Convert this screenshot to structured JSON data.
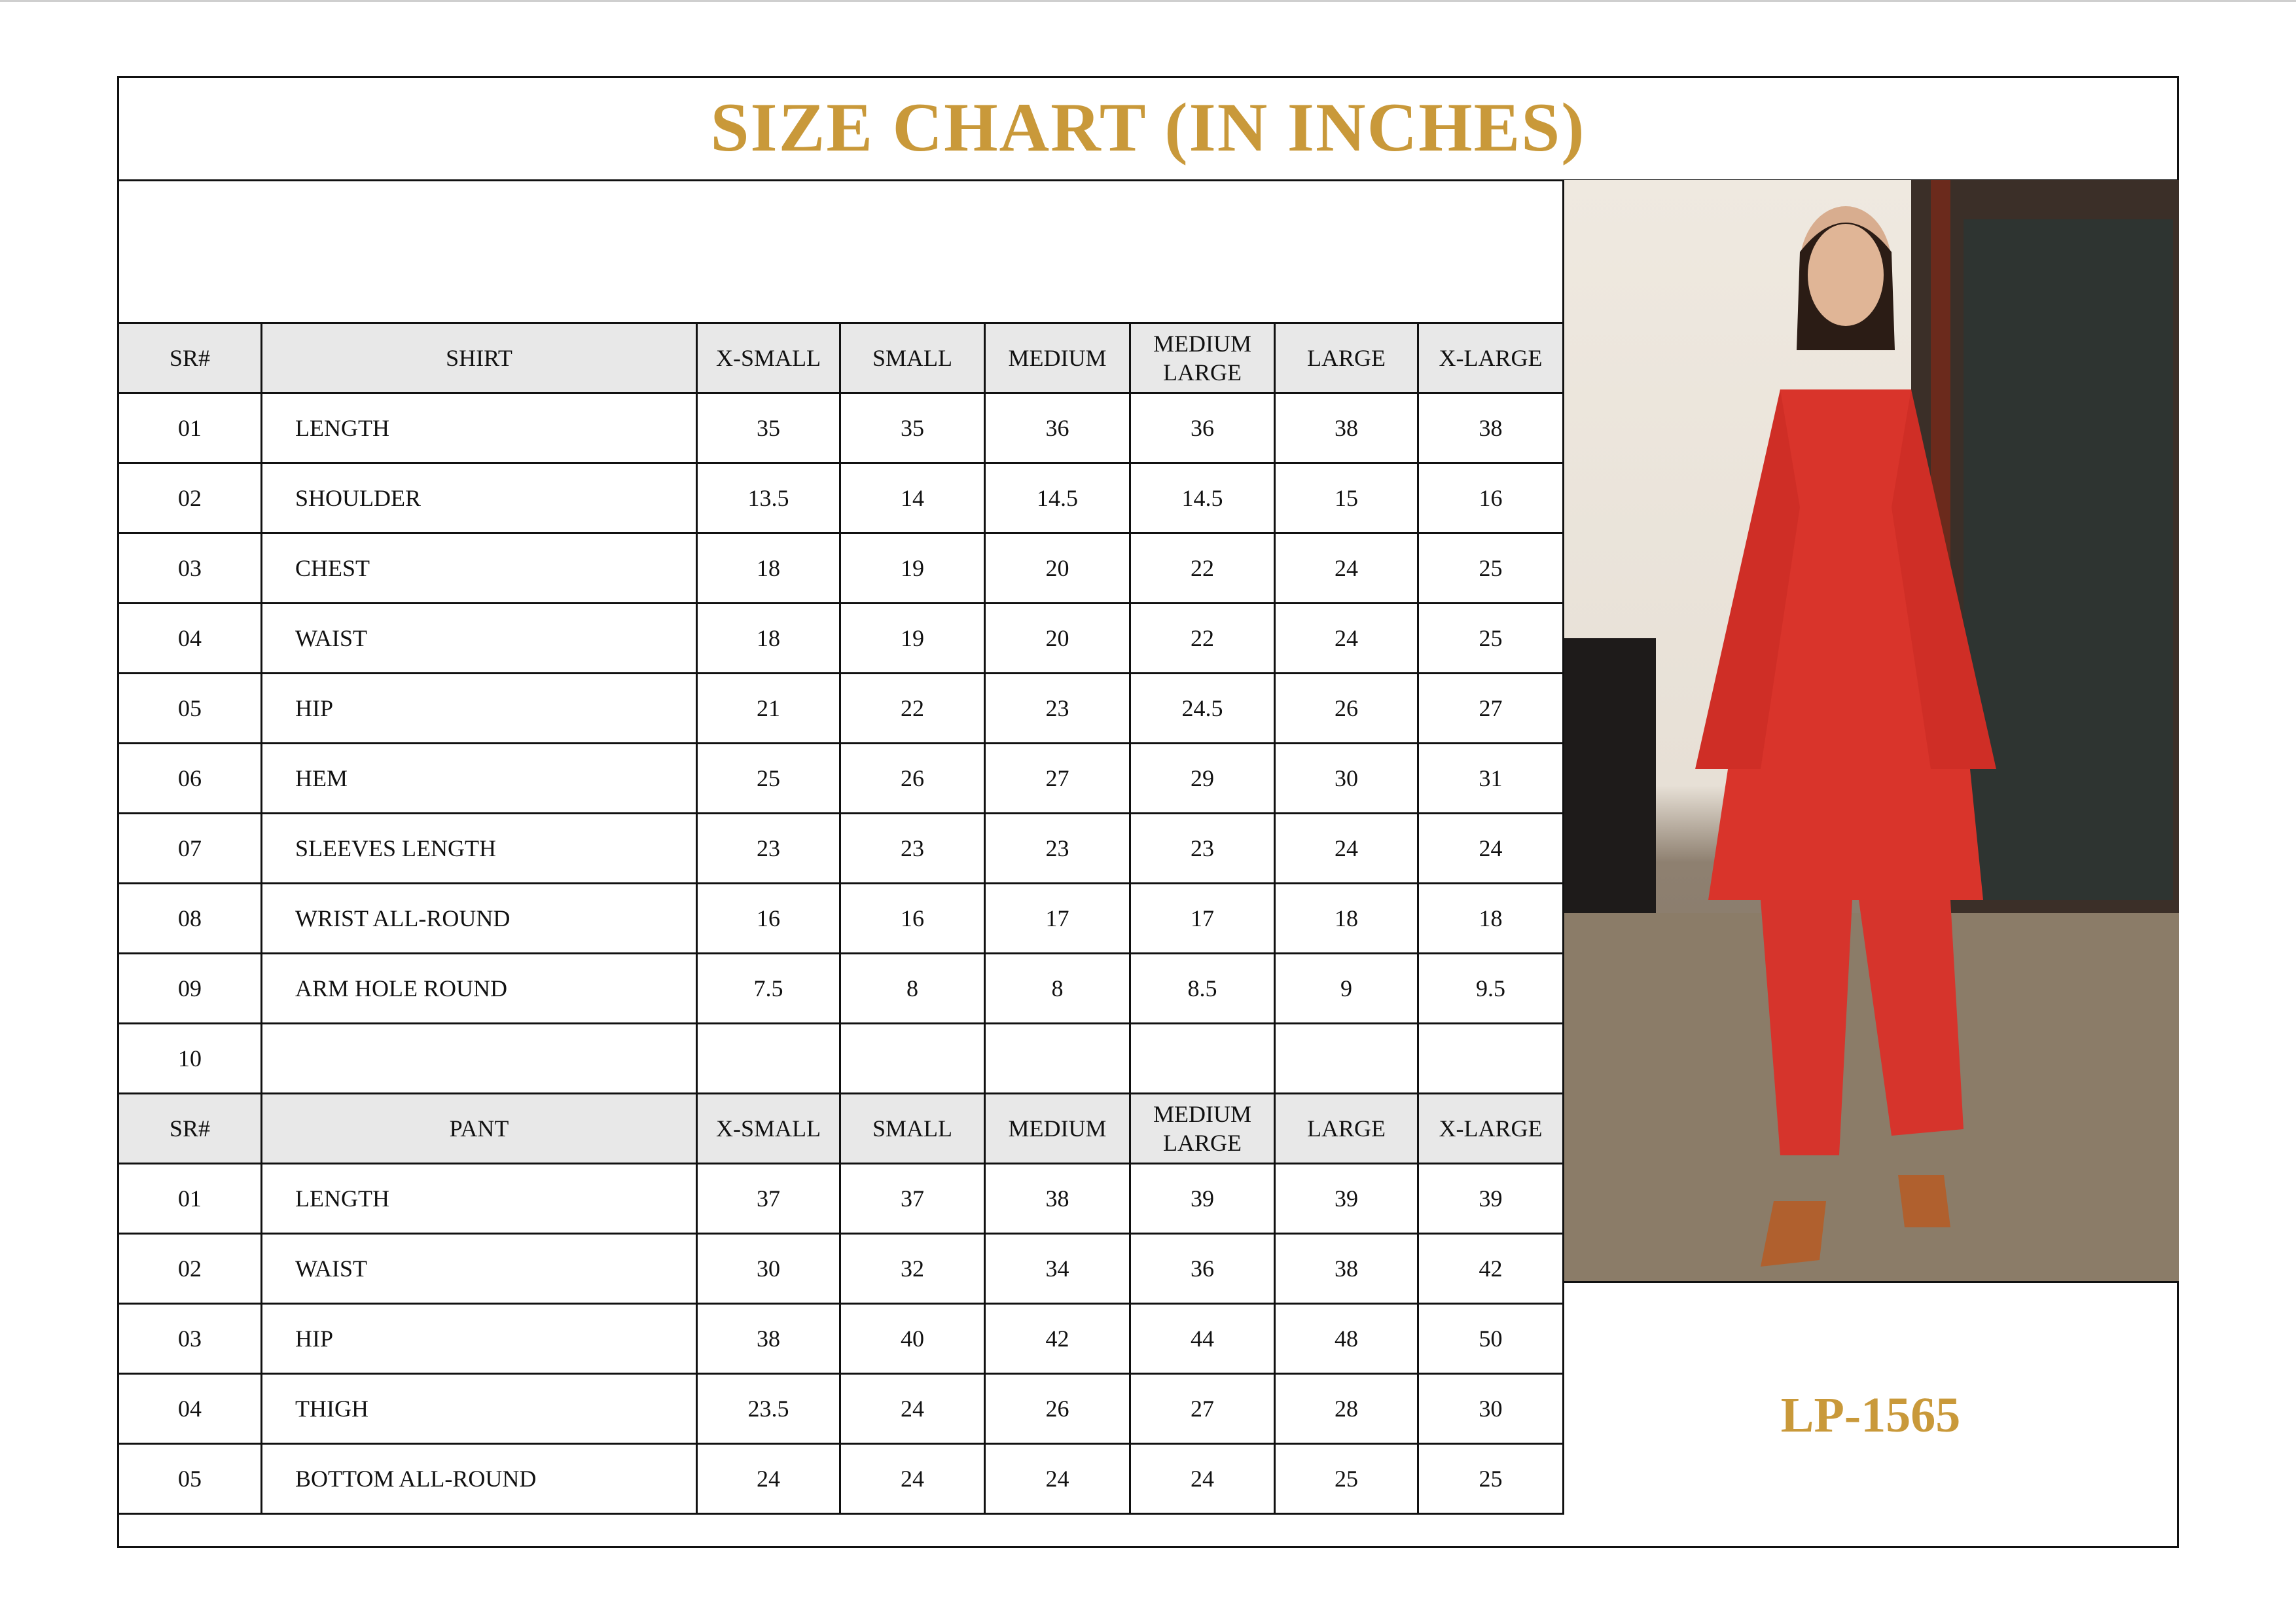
{
  "title": "SIZE CHART (IN INCHES)",
  "product_code": "LP-1565",
  "colors": {
    "accent": "#C9993A",
    "header_bg": "#e8e8e8",
    "garment": "#d9342b"
  },
  "shirt": {
    "header": [
      "SR#",
      "SHIRT",
      "X-SMALL",
      "SMALL",
      "MEDIUM",
      "MEDIUM\nLARGE",
      "LARGE",
      "X-LARGE"
    ],
    "rows": [
      [
        "01",
        "LENGTH",
        "35",
        "35",
        "36",
        "36",
        "38",
        "38"
      ],
      [
        "02",
        "SHOULDER",
        "13.5",
        "14",
        "14.5",
        "14.5",
        "15",
        "16"
      ],
      [
        "03",
        "CHEST",
        "18",
        "19",
        "20",
        "22",
        "24",
        "25"
      ],
      [
        "04",
        "WAIST",
        "18",
        "19",
        "20",
        "22",
        "24",
        "25"
      ],
      [
        "05",
        "HIP",
        "21",
        "22",
        "23",
        "24.5",
        "26",
        "27"
      ],
      [
        "06",
        "HEM",
        "25",
        "26",
        "27",
        "29",
        "30",
        "31"
      ],
      [
        "07",
        "SLEEVES LENGTH",
        "23",
        "23",
        "23",
        "23",
        "24",
        "24"
      ],
      [
        "08",
        "WRIST ALL-ROUND",
        "16",
        "16",
        "17",
        "17",
        "18",
        "18"
      ],
      [
        "09",
        "ARM HOLE ROUND",
        "7.5",
        "8",
        "8",
        "8.5",
        "9",
        "9.5"
      ],
      [
        "10",
        "",
        "",
        "",
        "",
        "",
        "",
        ""
      ]
    ]
  },
  "pant": {
    "header": [
      "SR#",
      "PANT",
      "X-SMALL",
      "SMALL",
      "MEDIUM",
      "MEDIUM\nLARGE",
      "LARGE",
      "X-LARGE"
    ],
    "rows": [
      [
        "01",
        "LENGTH",
        "37",
        "37",
        "38",
        "39",
        "39",
        "39"
      ],
      [
        "02",
        "WAIST",
        "30",
        "32",
        "34",
        "36",
        "38",
        "42"
      ],
      [
        "03",
        "HIP",
        "38",
        "40",
        "42",
        "44",
        "48",
        "50"
      ],
      [
        "04",
        "THIGH",
        "23.5",
        "24",
        "26",
        "27",
        "28",
        "30"
      ],
      [
        "05",
        "BOTTOM ALL-ROUND",
        "24",
        "24",
        "24",
        "24",
        "25",
        "25"
      ]
    ]
  }
}
